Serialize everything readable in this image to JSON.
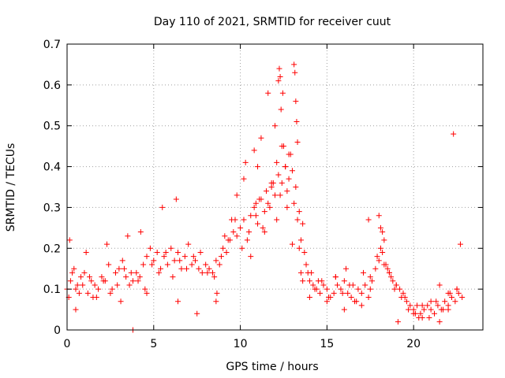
{
  "chart_data": {
    "type": "scatter",
    "title": "Day 110 of 2021, SRMTID for receiver cuut",
    "xlabel": "GPS time / hours",
    "ylabel": "SRMTID / TECUs",
    "xlim": [
      0,
      24
    ],
    "ylim": [
      0,
      0.7
    ],
    "x_ticks": [
      0,
      5,
      10,
      15,
      20
    ],
    "x_tick_labels": [
      "0",
      "5",
      "10",
      "15",
      "20"
    ],
    "y_ticks": [
      0,
      0.1,
      0.2,
      0.3,
      0.4,
      0.5,
      0.6,
      0.7
    ],
    "y_tick_labels": [
      "0",
      "0.1",
      "0.2",
      "0.3",
      "0.4",
      "0.5",
      "0.6",
      "0.7"
    ],
    "grid": true,
    "marker": "plus",
    "color": "#ff0000",
    "series": [
      {
        "name": "SRMTID",
        "x": [
          0.0,
          0.2,
          0.4,
          0.6,
          0.8,
          1.0,
          1.2,
          1.4,
          1.6,
          1.8,
          2.0,
          2.2,
          2.4,
          2.6,
          2.8,
          3.0,
          3.2,
          3.4,
          3.6,
          3.8,
          4.0,
          4.2,
          4.4,
          4.6,
          4.8,
          5.0,
          5.2,
          5.4,
          5.6,
          5.8,
          6.0,
          6.2,
          6.4,
          6.6,
          6.8,
          7.0,
          7.2,
          7.4,
          7.6,
          7.8,
          8.0,
          8.2,
          8.4,
          8.6,
          8.8,
          9.0,
          9.2,
          9.4,
          9.6,
          9.8,
          10.0,
          10.2,
          10.4,
          10.6,
          10.8,
          11.0,
          11.2,
          11.4,
          11.6,
          11.8,
          12.0,
          12.2,
          12.4,
          12.6,
          12.8,
          13.0,
          13.2,
          13.4,
          13.6,
          13.8,
          14.0,
          14.2,
          14.4,
          14.6,
          14.8,
          15.0,
          15.2,
          15.4,
          15.6,
          15.8,
          16.0,
          16.2,
          16.4,
          16.6,
          16.8,
          17.0,
          17.2,
          17.4,
          17.6,
          17.8,
          18.0,
          18.2,
          18.4,
          18.6,
          18.8,
          19.0,
          19.2,
          19.4,
          19.6,
          19.8,
          20.0,
          20.2,
          20.4,
          20.6,
          20.8,
          21.0,
          21.2,
          21.4,
          21.6,
          21.8,
          22.0,
          22.2,
          22.4,
          22.6,
          22.8,
          0.1,
          0.3,
          0.5,
          0.7,
          0.9,
          1.3,
          1.7,
          2.1,
          2.5,
          2.9,
          3.3,
          3.7,
          4.1,
          4.5,
          4.9,
          5.3,
          5.7,
          6.1,
          6.5,
          6.9,
          7.3,
          7.7,
          8.1,
          8.5,
          8.9,
          9.3,
          9.7,
          10.1,
          10.5,
          10.9,
          11.1,
          11.3,
          11.5,
          11.7,
          11.9,
          12.1,
          12.3,
          12.5,
          12.7,
          12.9,
          13.1,
          13.3,
          13.5,
          13.7,
          13.9,
          14.3,
          14.7,
          15.1,
          15.5,
          15.9,
          16.3,
          16.7,
          17.1,
          17.5,
          17.9,
          18.1,
          18.3,
          18.5,
          18.7,
          18.9,
          19.3,
          19.7,
          20.1,
          20.5,
          20.9,
          21.3,
          21.7,
          22.1,
          22.5,
          22.7,
          0.15,
          0.5,
          1.1,
          1.5,
          2.3,
          3.1,
          3.5,
          3.8,
          4.25,
          4.6,
          5.5,
          6.3,
          6.4,
          7.5,
          8.6,
          8.65,
          9.1,
          10.3,
          10.8,
          11.2,
          11.6,
          12.2,
          12.25,
          12.3,
          12.35,
          12.45,
          13.1,
          13.15,
          13.2,
          13.25,
          13.3,
          13.4,
          14.1,
          16.1,
          17.4,
          18.0,
          18.1,
          18.2,
          18.3,
          19.1,
          20.3,
          21.5,
          22.0,
          22.3,
          12.0,
          12.4,
          12.6,
          12.8,
          13.0,
          11.4,
          11.8,
          10.6,
          10.9,
          13.6,
          9.5,
          9.8,
          10.2,
          11.0,
          12.1,
          12.7,
          13.5,
          14.0,
          14.5,
          15.0,
          15.5,
          16.0,
          16.5,
          17.0,
          17.5,
          18.6,
          19.0,
          19.5,
          20.0,
          20.5,
          21.0,
          21.5,
          22.0,
          22.5
        ],
        "y": [
          0.1,
          0.12,
          0.15,
          0.11,
          0.13,
          0.14,
          0.09,
          0.12,
          0.11,
          0.1,
          0.13,
          0.12,
          0.16,
          0.1,
          0.14,
          0.15,
          0.17,
          0.13,
          0.11,
          0.12,
          0.14,
          0.13,
          0.16,
          0.18,
          0.2,
          0.17,
          0.19,
          0.15,
          0.18,
          0.16,
          0.2,
          0.17,
          0.19,
          0.15,
          0.18,
          0.21,
          0.16,
          0.17,
          0.15,
          0.14,
          0.16,
          0.15,
          0.14,
          0.17,
          0.16,
          0.2,
          0.19,
          0.22,
          0.24,
          0.23,
          0.25,
          0.27,
          0.22,
          0.28,
          0.3,
          0.26,
          0.32,
          0.29,
          0.31,
          0.35,
          0.33,
          0.38,
          0.36,
          0.4,
          0.37,
          0.39,
          0.35,
          0.29,
          0.26,
          0.16,
          0.12,
          0.11,
          0.1,
          0.09,
          0.11,
          0.1,
          0.08,
          0.09,
          0.11,
          0.1,
          0.12,
          0.09,
          0.08,
          0.07,
          0.1,
          0.09,
          0.11,
          0.08,
          0.12,
          0.15,
          0.17,
          0.19,
          0.16,
          0.14,
          0.12,
          0.11,
          0.1,
          0.09,
          0.07,
          0.06,
          0.05,
          0.06,
          0.04,
          0.05,
          0.06,
          0.05,
          0.04,
          0.06,
          0.05,
          0.07,
          0.06,
          0.08,
          0.07,
          0.09,
          0.08,
          0.08,
          0.14,
          0.1,
          0.09,
          0.11,
          0.13,
          0.08,
          0.12,
          0.09,
          0.11,
          0.15,
          0.14,
          0.12,
          0.1,
          0.16,
          0.14,
          0.19,
          0.13,
          0.17,
          0.15,
          0.18,
          0.19,
          0.14,
          0.13,
          0.18,
          0.22,
          0.27,
          0.2,
          0.24,
          0.28,
          0.32,
          0.25,
          0.34,
          0.3,
          0.36,
          0.41,
          0.33,
          0.45,
          0.34,
          0.43,
          0.31,
          0.27,
          0.22,
          0.19,
          0.14,
          0.1,
          0.12,
          0.08,
          0.13,
          0.09,
          0.11,
          0.07,
          0.14,
          0.13,
          0.18,
          0.2,
          0.22,
          0.15,
          0.13,
          0.1,
          0.08,
          0.05,
          0.04,
          0.06,
          0.03,
          0.07,
          0.05,
          0.09,
          0.1,
          0.21,
          0.22,
          0.05,
          0.19,
          0.08,
          0.21,
          0.07,
          0.23,
          0.0,
          0.24,
          0.09,
          0.3,
          0.32,
          0.07,
          0.04,
          0.07,
          0.09,
          0.23,
          0.41,
          0.44,
          0.47,
          0.58,
          0.61,
          0.64,
          0.62,
          0.54,
          0.58,
          0.65,
          0.63,
          0.56,
          0.51,
          0.46,
          0.2,
          0.14,
          0.15,
          0.27,
          0.28,
          0.25,
          0.24,
          0.16,
          0.02,
          0.03,
          0.11,
          0.05,
          0.48,
          0.5,
          0.45,
          0.4,
          0.43,
          0.21,
          0.24,
          0.36,
          0.18,
          0.31,
          0.12,
          0.27,
          0.33,
          0.37,
          0.4,
          0.27,
          0.3,
          0.14,
          0.08,
          0.12,
          0.07,
          0.13,
          0.05,
          0.11,
          0.06,
          0.1,
          0.14,
          0.11,
          0.08,
          0.04,
          0.03,
          0.07,
          0.02,
          0.09,
          0.1
        ]
      }
    ]
  }
}
